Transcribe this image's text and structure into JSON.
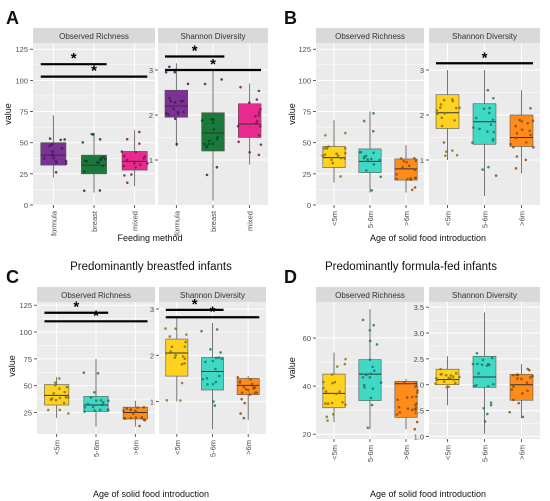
{
  "panel_letters": [
    "A",
    "B",
    "C",
    "D"
  ],
  "panel_titles": [
    "",
    "",
    "Predominantly breastfed infants",
    "Predominantly formula-fed infants"
  ],
  "facet_labels": [
    "Observed Richness",
    "Shannon Diversity"
  ],
  "y_axis_label": "value",
  "x_axis_labels": [
    "Feeding method",
    "Age of solid food introduction",
    "Age of solid food introduction",
    "Age of solid food introduction"
  ],
  "significance_symbol": "*",
  "colors": {
    "formula": "#7B3294",
    "breast": "#1A7A3C",
    "mixed": "#E8298F",
    "lt5m": "#FFD21F",
    "m5_6m": "#3FD9C5",
    "gt6m": "#FF8C1A",
    "panel_bg": "#EBEBEB",
    "strip_bg": "#D9D9D9",
    "grid": "#FFFFFF"
  },
  "chart_data": [
    {
      "type": "box",
      "panel": "A",
      "facet": "Observed Richness",
      "categories": [
        "formula",
        "breast",
        "mixed"
      ],
      "ylim": [
        0,
        130
      ],
      "yticks": [
        0,
        25,
        50,
        75,
        100,
        125
      ],
      "boxes": [
        {
          "q1": 32,
          "median": 40,
          "q3": 50,
          "whisker_low": 22,
          "whisker_high": 72
        },
        {
          "q1": 25,
          "median": 32,
          "q3": 40,
          "whisker_low": 10,
          "whisker_high": 58
        },
        {
          "q1": 28,
          "median": 35,
          "q3": 43,
          "whisker_low": 15,
          "whisker_high": 60
        }
      ],
      "significance": [
        {
          "from": 0,
          "to": 1,
          "y": 113
        },
        {
          "from": 0,
          "to": 2,
          "y": 103
        }
      ]
    },
    {
      "type": "box",
      "panel": "A",
      "facet": "Shannon Diversity",
      "categories": [
        "formula",
        "breast",
        "mixed"
      ],
      "ylim": [
        0,
        3.6
      ],
      "yticks": [
        1,
        2,
        3
      ],
      "boxes": [
        {
          "q1": 1.95,
          "median": 2.2,
          "q3": 2.55,
          "whisker_low": 1.3,
          "whisker_high": 3.15
        },
        {
          "q1": 1.2,
          "median": 1.6,
          "q3": 2.05,
          "whisker_low": 0.1,
          "whisker_high": 3.0
        },
        {
          "q1": 1.5,
          "median": 1.8,
          "q3": 2.25,
          "whisker_low": 0.9,
          "whisker_high": 2.7
        }
      ],
      "significance": [
        {
          "from": 0,
          "to": 1,
          "y": 3.3
        },
        {
          "from": 0,
          "to": 2,
          "y": 3.0
        }
      ]
    },
    {
      "type": "box",
      "panel": "B",
      "facet": "Observed Richness",
      "categories": [
        "<5m",
        "5-6m",
        ">6m"
      ],
      "ylim": [
        0,
        130
      ],
      "yticks": [
        0,
        25,
        50,
        75,
        100,
        125
      ],
      "boxes": [
        {
          "q1": 30,
          "median": 38,
          "q3": 47,
          "whisker_low": 18,
          "whisker_high": 68
        },
        {
          "q1": 26,
          "median": 35,
          "q3": 45,
          "whisker_low": 10,
          "whisker_high": 75
        },
        {
          "q1": 20,
          "median": 29,
          "q3": 37,
          "whisker_low": 10,
          "whisker_high": 48
        }
      ],
      "significance": []
    },
    {
      "type": "box",
      "panel": "B",
      "facet": "Shannon Diversity",
      "categories": [
        "<5m",
        "5-6m",
        ">6m"
      ],
      "ylim": [
        0,
        3.6
      ],
      "yticks": [
        1,
        2,
        3
      ],
      "boxes": [
        {
          "q1": 1.7,
          "median": 2.05,
          "q3": 2.45,
          "whisker_low": 1.0,
          "whisker_high": 3.0
        },
        {
          "q1": 1.35,
          "median": 1.85,
          "q3": 2.25,
          "whisker_low": 0.2,
          "whisker_high": 3.0
        },
        {
          "q1": 1.3,
          "median": 1.5,
          "q3": 2.0,
          "whisker_low": 0.7,
          "whisker_high": 2.55
        }
      ],
      "significance": [
        {
          "from": 0,
          "to": 2,
          "y": 3.15
        }
      ]
    },
    {
      "type": "box",
      "panel": "C",
      "facet": "Observed Richness",
      "categories": [
        "<5m",
        "5-6m",
        ">6m"
      ],
      "ylim": [
        5,
        128
      ],
      "yticks": [
        25,
        50,
        75,
        100,
        125
      ],
      "boxes": [
        {
          "q1": 32,
          "median": 41,
          "q3": 51,
          "whisker_low": 20,
          "whisker_high": 58
        },
        {
          "q1": 26,
          "median": 32,
          "q3": 40,
          "whisker_low": 12,
          "whisker_high": 75
        },
        {
          "q1": 19,
          "median": 25,
          "q3": 30,
          "whisker_low": 12,
          "whisker_high": 36
        }
      ],
      "significance": [
        {
          "from": 0,
          "to": 1,
          "y": 118
        },
        {
          "from": 0,
          "to": 2,
          "y": 110
        }
      ]
    },
    {
      "type": "box",
      "panel": "C",
      "facet": "Shannon Diversity",
      "categories": [
        "<5m",
        "5-6m",
        ">6m"
      ],
      "ylim": [
        0.3,
        3.15
      ],
      "yticks": [
        1,
        2,
        3
      ],
      "boxes": [
        {
          "q1": 1.55,
          "median": 2.05,
          "q3": 2.35,
          "whisker_low": 1.0,
          "whisker_high": 2.85
        },
        {
          "q1": 1.25,
          "median": 1.65,
          "q3": 1.95,
          "whisker_low": 0.4,
          "whisker_high": 2.7
        },
        {
          "q1": 1.15,
          "median": 1.35,
          "q3": 1.5,
          "whisker_low": 0.6,
          "whisker_high": 1.55
        }
      ],
      "significance": [
        {
          "from": 0,
          "to": 1,
          "y": 2.98
        },
        {
          "from": 0,
          "to": 2,
          "y": 2.82
        }
      ]
    },
    {
      "type": "box",
      "panel": "D",
      "facet": "Observed Richness",
      "categories": [
        "<5m",
        "5-6m",
        ">6m"
      ],
      "ylim": [
        18,
        75
      ],
      "yticks": [
        20,
        40,
        60
      ],
      "boxes": [
        {
          "q1": 31,
          "median": 37,
          "q3": 45,
          "whisker_low": 25,
          "whisker_high": 54
        },
        {
          "q1": 34,
          "median": 45,
          "q3": 51,
          "whisker_low": 22,
          "whisker_high": 72
        },
        {
          "q1": 27,
          "median": 41,
          "q3": 42,
          "whisker_low": 22,
          "whisker_high": 43
        }
      ],
      "significance": []
    },
    {
      "type": "box",
      "panel": "D",
      "facet": "Shannon Diversity",
      "categories": [
        "<5m",
        "5-6m",
        ">6m"
      ],
      "ylim": [
        0.95,
        3.6
      ],
      "yticks": [
        1.0,
        1.5,
        2.0,
        2.5,
        3.0,
        3.5
      ],
      "boxes": [
        {
          "q1": 2.0,
          "median": 2.1,
          "q3": 2.3,
          "whisker_low": 1.6,
          "whisker_high": 2.55
        },
        {
          "q1": 1.95,
          "median": 2.15,
          "q3": 2.55,
          "whisker_low": 1.05,
          "whisker_high": 3.4
        },
        {
          "q1": 1.7,
          "median": 2.0,
          "q3": 2.2,
          "whisker_low": 1.35,
          "whisker_high": 2.4
        }
      ],
      "significance": []
    }
  ]
}
